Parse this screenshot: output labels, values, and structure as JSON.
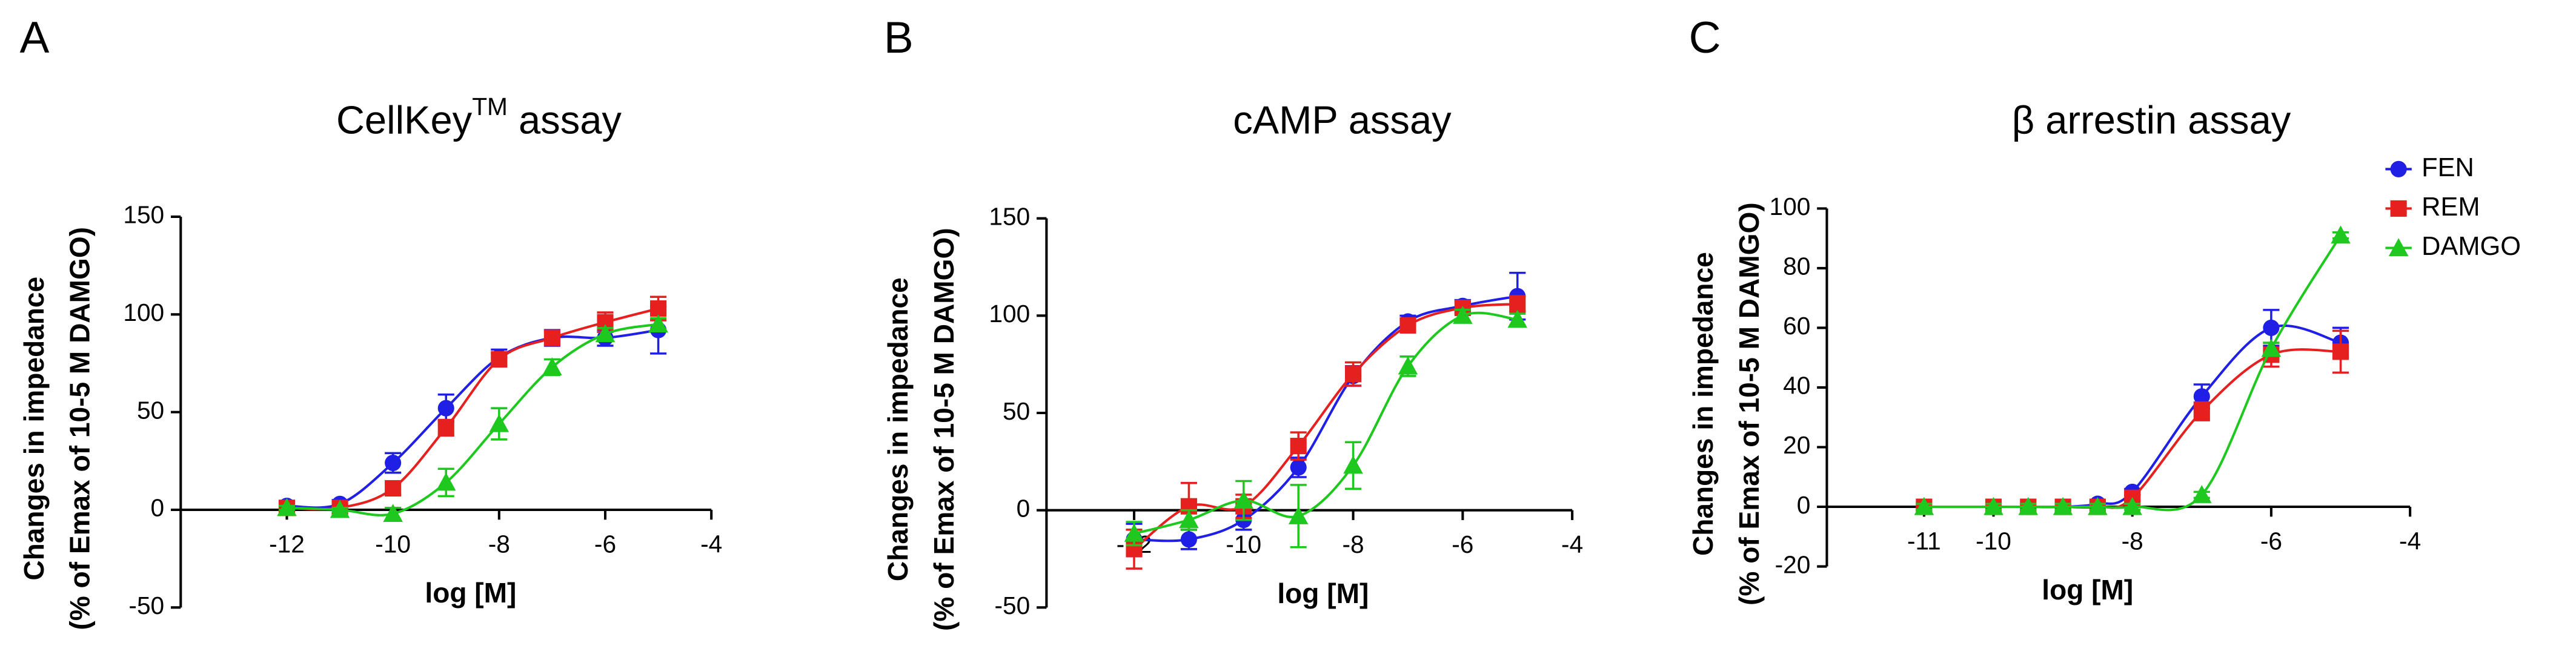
{
  "chart_data": [
    {
      "type": "line",
      "panel": "A",
      "title": "CellKey",
      "title_superscript": "TM",
      "title_suffix": " assay",
      "ylabel": [
        "Changes in impedance",
        "(% of Emax of 10-5 M DAMGO)"
      ],
      "xlabel": "log [M]",
      "x": [
        -12,
        -11,
        -10,
        -9,
        -8,
        -7,
        -6,
        -5
      ],
      "xlim": [
        -14,
        -4
      ],
      "xticks": [
        -12,
        -10,
        -8,
        -6,
        -4
      ],
      "ylim": [
        -50,
        150
      ],
      "yticks": [
        -50,
        0,
        50,
        100,
        150
      ],
      "series": [
        {
          "name": "FEN",
          "color": "#1f1fe6",
          "marker": "circle",
          "values": [
            2,
            3,
            24,
            52,
            78,
            88,
            88,
            92
          ],
          "errors": [
            2,
            2,
            5,
            7,
            4,
            4,
            4,
            12
          ]
        },
        {
          "name": "REM",
          "color": "#e61f1f",
          "marker": "square",
          "values": [
            1,
            1,
            11,
            42,
            77,
            88,
            96,
            103
          ],
          "errors": [
            1,
            2,
            3,
            4,
            3,
            3,
            5,
            6
          ]
        },
        {
          "name": "DAMGO",
          "color": "#1fc81f",
          "marker": "triangle",
          "values": [
            1,
            0,
            -2,
            14,
            44,
            73,
            90,
            95
          ],
          "errors": [
            1,
            1,
            3,
            7,
            8,
            4,
            3,
            3
          ]
        }
      ]
    },
    {
      "type": "line",
      "panel": "B",
      "title": "cAMP assay",
      "ylabel": [
        "Changes in impedance",
        "(% of Emax of 10-5 M DAMGO)"
      ],
      "xlabel": "log [M]",
      "x": [
        -12,
        -11,
        -10,
        -9,
        -8,
        -7,
        -6,
        -5
      ],
      "xlim": [
        -13.6,
        -4
      ],
      "xticks": [
        -12,
        -10,
        -8,
        -6,
        -4
      ],
      "ylim": [
        -50,
        150
      ],
      "yticks": [
        -50,
        0,
        50,
        100,
        150
      ],
      "series": [
        {
          "name": "FEN",
          "color": "#1f1fe6",
          "marker": "circle",
          "values": [
            -15,
            -15,
            -5,
            22,
            69,
            97,
            105,
            110
          ],
          "errors": [
            8,
            5,
            5,
            5,
            5,
            3,
            3,
            12
          ]
        },
        {
          "name": "REM",
          "color": "#e61f1f",
          "marker": "square",
          "values": [
            -20,
            2,
            2,
            33,
            70,
            95,
            104,
            106
          ],
          "errors": [
            10,
            12,
            6,
            7,
            6,
            3,
            3,
            4
          ]
        },
        {
          "name": "DAMGO",
          "color": "#1fc81f",
          "marker": "triangle",
          "values": [
            -12,
            -5,
            5,
            -3,
            23,
            74,
            100,
            98
          ],
          "errors": [
            6,
            5,
            10,
            16,
            12,
            5,
            3,
            3
          ]
        }
      ]
    },
    {
      "type": "line",
      "panel": "C",
      "title": "β arrestin assay",
      "ylabel": [
        "Changes in impedance",
        "(% of Emax of 10-5 M DAMGO)"
      ],
      "xlabel": "log [M]",
      "x": [
        -11,
        -10,
        -9.5,
        -9,
        -8.5,
        -8,
        -7,
        -6,
        -5
      ],
      "xlim": [
        -12.4,
        -4
      ],
      "xticks": [
        -11,
        -10,
        -8,
        -6,
        -4
      ],
      "ylim": [
        -20,
        100
      ],
      "yticks": [
        -20,
        0,
        20,
        40,
        60,
        80,
        100
      ],
      "legend": "top-right",
      "series": [
        {
          "name": "FEN",
          "color": "#1f1fe6",
          "marker": "circle",
          "values": [
            0,
            0,
            0,
            0,
            1,
            5,
            37,
            60,
            55
          ],
          "errors": [
            1,
            1,
            1,
            1,
            1,
            1,
            4,
            6,
            5
          ]
        },
        {
          "name": "REM",
          "color": "#e61f1f",
          "marker": "square",
          "values": [
            0,
            0,
            0,
            0,
            0,
            3,
            32,
            51,
            52
          ],
          "errors": [
            1,
            1,
            1,
            1,
            1,
            1,
            3,
            4,
            7
          ]
        },
        {
          "name": "DAMGO",
          "color": "#1fc81f",
          "marker": "triangle",
          "values": [
            0,
            0,
            0,
            0,
            0,
            0,
            4,
            53,
            91
          ],
          "errors": [
            1,
            1,
            1,
            1,
            1,
            1,
            1,
            2,
            1
          ]
        }
      ]
    }
  ]
}
